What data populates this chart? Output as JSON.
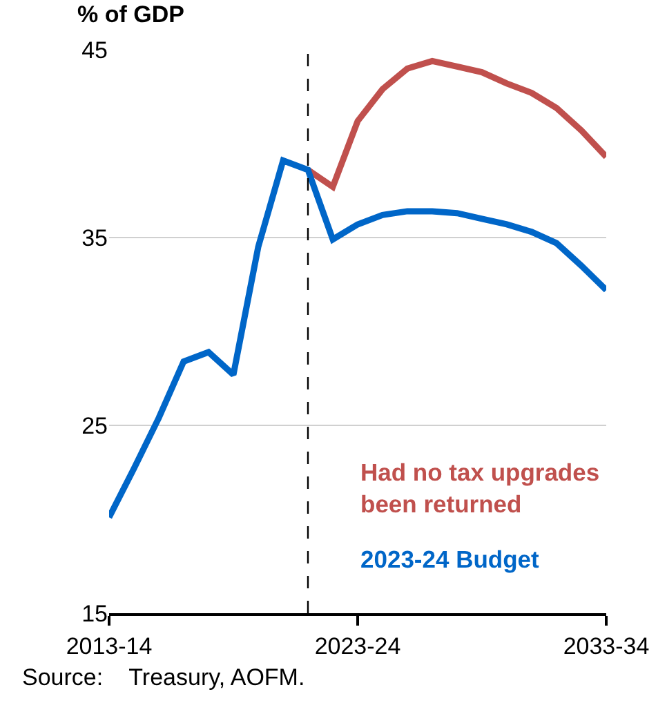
{
  "chart_data": {
    "type": "line",
    "ylabel": "% of GDP",
    "categories": [
      "2013-14",
      null,
      null,
      null,
      null,
      null,
      null,
      null,
      null,
      null,
      "2023-24",
      null,
      null,
      null,
      null,
      null,
      null,
      null,
      null,
      null,
      "2033-34"
    ],
    "ylim": [
      15,
      45
    ],
    "yticks": [
      15,
      25,
      35,
      45
    ],
    "grid": "y",
    "legend": false,
    "marker": "none",
    "line_style": "solid",
    "series": [
      {
        "name": "Had no tax upgrades been returned",
        "color": "#c0504d",
        "values": [
          null,
          null,
          null,
          null,
          null,
          null,
          null,
          null,
          38.6,
          37.7,
          41.2,
          42.9,
          44.0,
          44.4,
          44.1,
          43.8,
          43.2,
          42.7,
          41.9,
          40.7,
          39.3
        ]
      },
      {
        "name": "2023-24 Budget",
        "color": "#0066c8",
        "values": [
          20.1,
          22.7,
          25.4,
          28.4,
          28.9,
          27.7,
          34.5,
          39.1,
          38.6,
          34.9,
          35.7,
          36.2,
          36.4,
          36.4,
          36.3,
          36.0,
          35.7,
          35.3,
          34.7,
          33.5,
          32.2
        ]
      }
    ],
    "annotations": [
      "Source:    Treasury, AOFM."
    ]
  }
}
